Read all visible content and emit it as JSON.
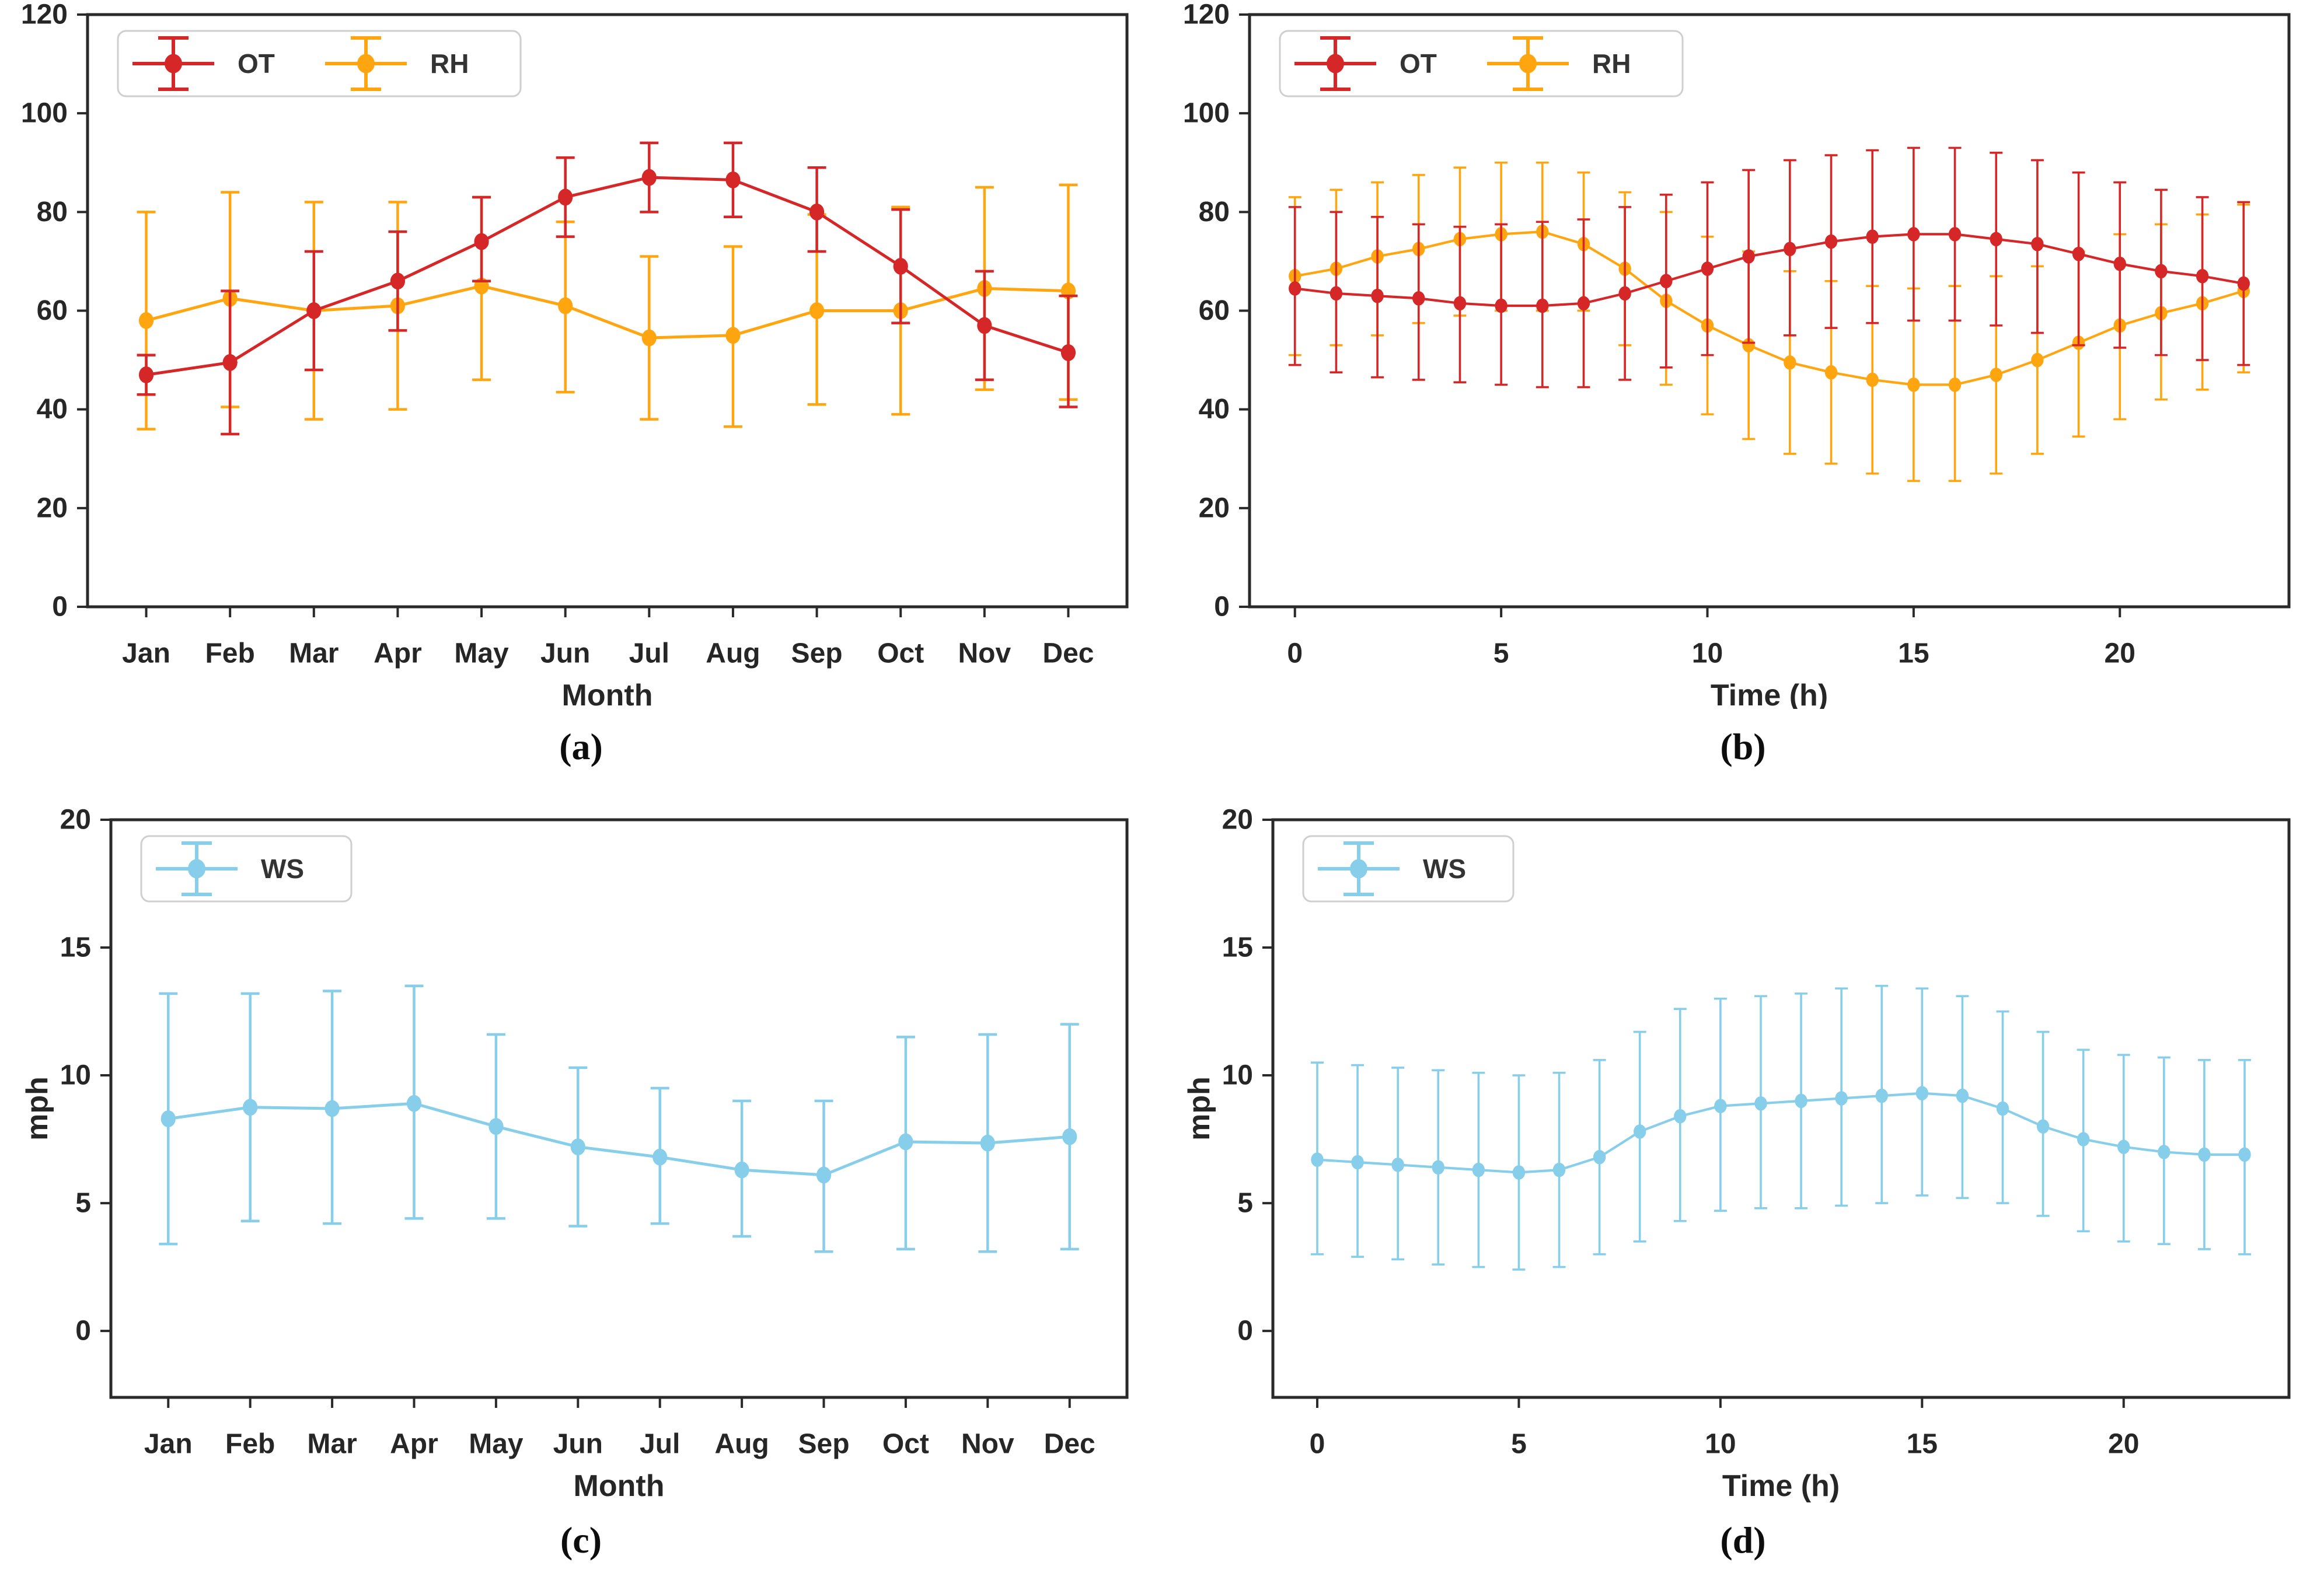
{
  "page": {
    "background": "#ffffff"
  },
  "chart_data": [
    {
      "id": "a",
      "type": "line",
      "caption": "(a)",
      "xlabel": "Month",
      "ylabel": "",
      "x_type": "categorical",
      "categories": [
        "Jan",
        "Feb",
        "Mar",
        "Apr",
        "May",
        "Jun",
        "Jul",
        "Aug",
        "Sep",
        "Oct",
        "Nov",
        "Dec"
      ],
      "xlim": [
        -0.7,
        11.7
      ],
      "ylim": [
        0,
        120
      ],
      "yticks": [
        0,
        20,
        40,
        60,
        80,
        100,
        120
      ],
      "grid": false,
      "legend_position": "top-left",
      "series": [
        {
          "name": "OT",
          "color": "#d62728",
          "values": [
            47,
            49.5,
            60,
            66,
            74,
            83,
            87,
            86.5,
            80,
            69,
            57,
            51.5
          ],
          "lower": [
            43,
            35,
            48,
            56,
            66,
            75,
            80,
            79,
            72,
            57.5,
            46,
            40.5
          ],
          "upper": [
            51,
            64,
            72,
            76,
            83,
            91,
            94,
            94,
            89,
            80.5,
            68,
            63
          ]
        },
        {
          "name": "RH",
          "color": "#ffa50f",
          "values": [
            58,
            62.5,
            60,
            61,
            65,
            61,
            54.5,
            55,
            60,
            60,
            64.5,
            64
          ],
          "lower": [
            36,
            40.5,
            38,
            40,
            46,
            43.5,
            38,
            36.5,
            41,
            39,
            44,
            42
          ],
          "upper": [
            80,
            84,
            82,
            82,
            83,
            78,
            71,
            73,
            79.5,
            81,
            85,
            85.5
          ]
        }
      ]
    },
    {
      "id": "b",
      "type": "line",
      "caption": "(b)",
      "xlabel": "Time (h)",
      "ylabel": "",
      "x_type": "numeric",
      "x": [
        0,
        1,
        2,
        3,
        4,
        5,
        6,
        7,
        8,
        9,
        10,
        11,
        12,
        13,
        14,
        15,
        16,
        17,
        18,
        19,
        20,
        21,
        22,
        23
      ],
      "xticks": [
        0,
        5,
        10,
        15,
        20
      ],
      "xlim": [
        -1.1,
        24.1
      ],
      "ylim": [
        0,
        120
      ],
      "yticks": [
        0,
        20,
        40,
        60,
        80,
        100,
        120
      ],
      "grid": false,
      "legend_position": "top-left",
      "series": [
        {
          "name": "OT",
          "color": "#d62728",
          "values": [
            64.5,
            63.5,
            63,
            62.5,
            61.5,
            61,
            61,
            61.5,
            63.5,
            66,
            68.5,
            71,
            72.5,
            74,
            75,
            75.5,
            75.5,
            74.5,
            73.5,
            71.5,
            69.5,
            68,
            67,
            65.5
          ],
          "lower": [
            49,
            47.5,
            46.5,
            46,
            45.5,
            45,
            44.5,
            44.5,
            46,
            48.5,
            51,
            53.5,
            55,
            56.5,
            57.5,
            58,
            58,
            57,
            55.5,
            53,
            52.5,
            51,
            50,
            49
          ],
          "upper": [
            81,
            80,
            79,
            77.5,
            77,
            77.5,
            78,
            78.5,
            81,
            83.5,
            86,
            88.5,
            90.5,
            91.5,
            92.5,
            93,
            93,
            92,
            90.5,
            88,
            86,
            84.5,
            83,
            82
          ]
        },
        {
          "name": "RH",
          "color": "#ffa50f",
          "values": [
            67,
            68.5,
            71,
            72.5,
            74.5,
            75.5,
            76,
            73.5,
            68.5,
            62,
            57,
            53,
            49.5,
            47.5,
            46,
            45,
            45,
            47,
            50,
            53.5,
            57,
            59.5,
            61.5,
            64
          ],
          "lower": [
            51,
            53,
            55,
            57.5,
            59,
            60,
            60,
            60,
            53,
            45,
            39,
            34,
            31,
            29,
            27,
            25.5,
            25.5,
            27,
            31,
            34.5,
            38,
            42,
            44,
            47.5
          ],
          "upper": [
            83,
            84.5,
            86,
            87.5,
            89,
            90,
            90,
            88,
            84,
            80,
            75,
            72,
            68,
            66,
            65,
            64.5,
            65,
            67,
            69,
            72,
            75.5,
            77.5,
            79.5,
            81.5
          ]
        }
      ]
    },
    {
      "id": "c",
      "type": "line",
      "caption": "(c)",
      "xlabel": "Month",
      "ylabel": "mph",
      "x_type": "categorical",
      "categories": [
        "Jan",
        "Feb",
        "Mar",
        "Apr",
        "May",
        "Jun",
        "Jul",
        "Aug",
        "Sep",
        "Oct",
        "Nov",
        "Dec"
      ],
      "xlim": [
        -0.7,
        11.7
      ],
      "ylim": [
        -2.6,
        20
      ],
      "yticks": [
        0,
        5,
        10,
        15,
        20
      ],
      "grid": false,
      "legend_position": "top-left",
      "series": [
        {
          "name": "WS",
          "color": "#87ceeb",
          "values": [
            8.3,
            8.75,
            8.7,
            8.9,
            8.0,
            7.2,
            6.8,
            6.3,
            6.1,
            7.4,
            7.35,
            7.6
          ],
          "lower": [
            3.4,
            4.3,
            4.2,
            4.4,
            4.4,
            4.1,
            4.2,
            3.7,
            3.1,
            3.2,
            3.1,
            3.2
          ],
          "upper": [
            13.2,
            13.2,
            13.3,
            13.5,
            11.6,
            10.3,
            9.5,
            9.0,
            9.0,
            11.5,
            11.6,
            12.0
          ]
        }
      ]
    },
    {
      "id": "d",
      "type": "line",
      "caption": "(d)",
      "xlabel": "Time (h)",
      "ylabel": "mph",
      "x_type": "numeric",
      "x": [
        0,
        1,
        2,
        3,
        4,
        5,
        6,
        7,
        8,
        9,
        10,
        11,
        12,
        13,
        14,
        15,
        16,
        17,
        18,
        19,
        20,
        21,
        22,
        23
      ],
      "xticks": [
        0,
        5,
        10,
        15,
        20
      ],
      "xlim": [
        -1.1,
        24.1
      ],
      "ylim": [
        -2.6,
        20
      ],
      "yticks": [
        0,
        5,
        10,
        15,
        20
      ],
      "grid": false,
      "legend_position": "top-left",
      "series": [
        {
          "name": "WS",
          "color": "#87ceeb",
          "values": [
            6.7,
            6.6,
            6.5,
            6.4,
            6.3,
            6.2,
            6.3,
            6.8,
            7.8,
            8.4,
            8.8,
            8.9,
            9.0,
            9.1,
            9.2,
            9.3,
            9.2,
            8.7,
            8.0,
            7.5,
            7.2,
            7.0,
            6.9,
            6.9
          ],
          "lower": [
            3.0,
            2.9,
            2.8,
            2.6,
            2.5,
            2.4,
            2.5,
            3.0,
            3.5,
            4.3,
            4.7,
            4.8,
            4.8,
            4.9,
            5.0,
            5.3,
            5.2,
            5.0,
            4.5,
            3.9,
            3.5,
            3.4,
            3.2,
            3.0
          ],
          "upper": [
            10.5,
            10.4,
            10.3,
            10.2,
            10.1,
            10.0,
            10.1,
            10.6,
            11.7,
            12.6,
            13.0,
            13.1,
            13.2,
            13.4,
            13.5,
            13.4,
            13.1,
            12.5,
            11.7,
            11.0,
            10.8,
            10.7,
            10.6,
            10.6
          ]
        }
      ]
    }
  ]
}
